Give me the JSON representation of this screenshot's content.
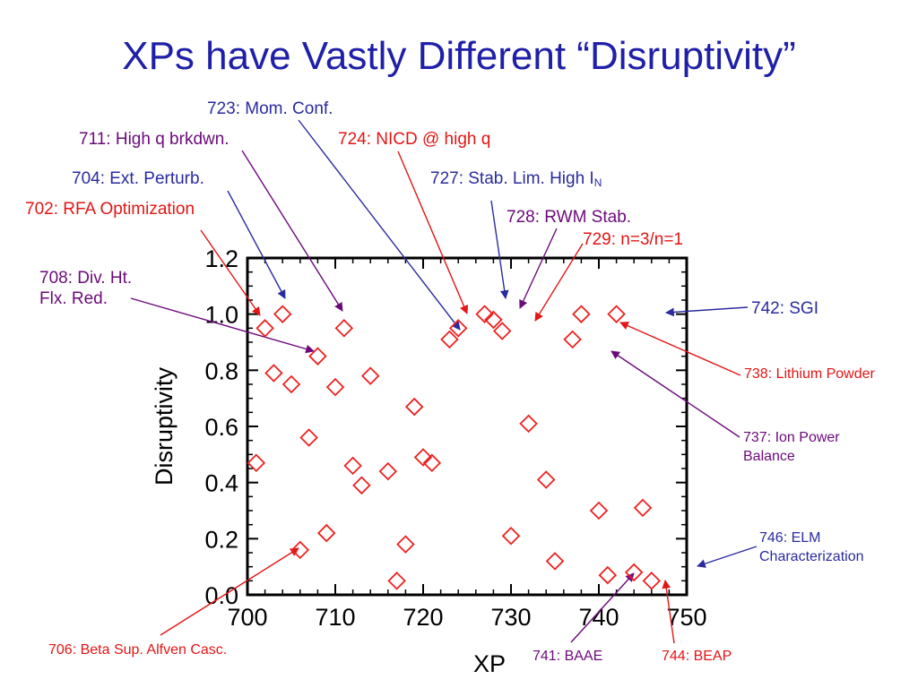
{
  "slide": {
    "title": "XPs have Vastly Different “Disruptivity”"
  },
  "colors": {
    "title": "#1f1fa8",
    "blue_annotation": "#2b2b9e",
    "purple_annotation": "#6b0a7a",
    "red_annotation": "#e31515",
    "marker": "#ee2222",
    "axis": "#000000"
  },
  "chart_data": {
    "type": "scatter",
    "marker": "diamond",
    "xlabel": "XP",
    "ylabel": "Disruptivity",
    "xlim": [
      700,
      750
    ],
    "ylim": [
      0.0,
      1.2
    ],
    "xticks": [
      "700",
      "710",
      "720",
      "730",
      "740",
      "750"
    ],
    "yticks": [
      "0.0",
      "0.2",
      "0.4",
      "0.6",
      "0.8",
      "1.0",
      "1.2"
    ],
    "x": [
      701,
      702,
      703,
      704,
      705,
      706,
      707,
      708,
      709,
      710,
      711,
      712,
      713,
      714,
      716,
      717,
      718,
      719,
      720,
      721,
      723,
      724,
      727,
      728,
      729,
      730,
      732,
      734,
      735,
      737,
      738,
      740,
      741,
      742,
      744,
      745,
      746
    ],
    "y": [
      0.47,
      0.95,
      0.79,
      1.0,
      0.75,
      0.16,
      0.56,
      0.85,
      0.22,
      0.74,
      0.95,
      0.46,
      0.39,
      0.78,
      0.44,
      0.05,
      0.18,
      0.67,
      0.49,
      0.47,
      0.91,
      0.95,
      1.0,
      0.98,
      0.94,
      0.21,
      0.61,
      0.41,
      0.12,
      0.91,
      1.0,
      0.3,
      0.07,
      1.0,
      0.08,
      0.31,
      0.05
    ],
    "annotations": [
      {
        "text": "723: Mom. Conf.",
        "color": "blue",
        "xp": 723
      },
      {
        "text": "711: High q brkdwn.",
        "color": "purple",
        "xp": 711
      },
      {
        "text": "724: NICD @ high q",
        "color": "red",
        "xp": 724
      },
      {
        "text": "704: Ext. Perturb.",
        "color": "blue",
        "xp": 704
      },
      {
        "text_main": "727: Stab. Lim. High I",
        "text_sub": "N",
        "color": "blue",
        "xp": 727
      },
      {
        "text": "702: RFA Optimization",
        "color": "red",
        "xp": 702
      },
      {
        "text": "728: RWM Stab.",
        "color": "purple",
        "xp": 728
      },
      {
        "text": "729: n=3/n=1",
        "color": "red",
        "xp": 729
      },
      {
        "line1": "708: Div. Ht.",
        "line2": "Flx. Red.",
        "color": "purple",
        "xp": 708
      },
      {
        "text": "742: SGI",
        "color": "blue",
        "xp": 742
      },
      {
        "text": "738: Lithium Powder",
        "color": "red",
        "xp": 738
      },
      {
        "line1": "737: Ion Power",
        "line2": "Balance",
        "color": "purple",
        "xp": 737
      },
      {
        "line1": "746: ELM",
        "line2": "Characterization",
        "color": "blue",
        "xp": 746
      },
      {
        "text": "706: Beta Sup. Alfven Casc.",
        "color": "red",
        "xp": 706
      },
      {
        "text": "741: BAAE",
        "color": "purple",
        "xp": 741
      },
      {
        "text": "744: BEAP",
        "color": "red",
        "xp": 744
      }
    ]
  }
}
